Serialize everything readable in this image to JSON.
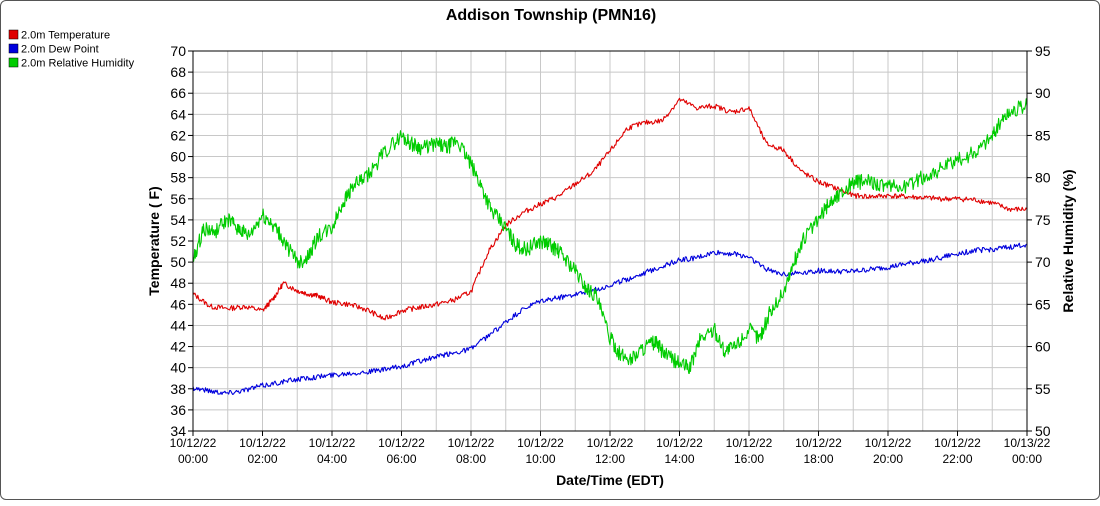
{
  "chart_data": {
    "type": "line",
    "title": "Addison Township (PMN16)",
    "xlabel": "Date/Time (EDT)",
    "ylabel_left": "Temperature ( F)",
    "ylabel_right": "Relative Humidity (%)",
    "ylim_left": [
      34,
      70
    ],
    "ylim_right": [
      50,
      95
    ],
    "xlim_hours": [
      0,
      24
    ],
    "grid": true,
    "legend_placement": "top-left",
    "x_ticks": [
      {
        "hour": 0,
        "date": "10/12/22",
        "time": "00:00"
      },
      {
        "hour": 2,
        "date": "10/12/22",
        "time": "02:00"
      },
      {
        "hour": 4,
        "date": "10/12/22",
        "time": "04:00"
      },
      {
        "hour": 6,
        "date": "10/12/22",
        "time": "06:00"
      },
      {
        "hour": 8,
        "date": "10/12/22",
        "time": "08:00"
      },
      {
        "hour": 10,
        "date": "10/12/22",
        "time": "10:00"
      },
      {
        "hour": 12,
        "date": "10/12/22",
        "time": "12:00"
      },
      {
        "hour": 14,
        "date": "10/12/22",
        "time": "14:00"
      },
      {
        "hour": 16,
        "date": "10/12/22",
        "time": "16:00"
      },
      {
        "hour": 18,
        "date": "10/12/22",
        "time": "18:00"
      },
      {
        "hour": 20,
        "date": "10/12/22",
        "time": "20:00"
      },
      {
        "hour": 22,
        "date": "10/12/22",
        "time": "22:00"
      },
      {
        "hour": 24,
        "date": "10/13/22",
        "time": "00:00"
      }
    ],
    "y_ticks_left": [
      34,
      36,
      38,
      40,
      42,
      44,
      46,
      48,
      50,
      52,
      54,
      56,
      58,
      60,
      62,
      64,
      66,
      68,
      70
    ],
    "y_ticks_right": [
      50,
      55,
      60,
      65,
      70,
      75,
      80,
      85,
      90,
      95
    ],
    "series": [
      {
        "name": "2.0m Temperature",
        "color": "#e00000",
        "axis": "left",
        "x": [
          0,
          0.5,
          1,
          1.5,
          2,
          2.3,
          2.6,
          3,
          3.3,
          3.6,
          4,
          4.5,
          5,
          5.5,
          6,
          6.5,
          7,
          7.5,
          8,
          8.5,
          9,
          9.5,
          10,
          10.5,
          11,
          11.5,
          12,
          12.5,
          13,
          13.5,
          14,
          14.5,
          15,
          15.5,
          16,
          16.5,
          17,
          17.5,
          18,
          18.5,
          19,
          19.5,
          20,
          20.5,
          21,
          21.5,
          22,
          22.5,
          23,
          23.5,
          24
        ],
        "values": [
          47,
          45.8,
          45.6,
          45.8,
          45.4,
          46.5,
          48,
          47.3,
          47,
          46.8,
          46.2,
          46,
          45.5,
          44.6,
          45.4,
          45.7,
          46,
          46.4,
          47.2,
          51,
          53.5,
          54.7,
          55.5,
          56.2,
          57.4,
          58.5,
          60.5,
          62.7,
          63.2,
          63.4,
          65.4,
          64.6,
          64.8,
          64.2,
          64.6,
          61.2,
          60.6,
          58.6,
          57.6,
          57,
          56.3,
          56.2,
          56.3,
          56.2,
          56.1,
          56,
          56,
          55.9,
          55.6,
          55,
          55
        ]
      },
      {
        "name": "2.0m Dew Point",
        "color": "#0000dd",
        "axis": "left",
        "x": [
          0,
          0.5,
          1,
          1.5,
          2,
          2.5,
          3,
          3.5,
          4,
          4.5,
          5,
          5.5,
          6,
          6.5,
          7,
          7.5,
          8,
          8.5,
          9,
          9.5,
          10,
          10.5,
          11,
          11.5,
          12,
          12.5,
          13,
          13.5,
          14,
          14.5,
          15,
          15.5,
          16,
          16.5,
          17,
          17.5,
          18,
          18.5,
          19,
          19.5,
          20,
          20.5,
          21,
          21.5,
          22,
          22.5,
          23,
          23.5,
          24
        ],
        "values": [
          38.1,
          37.8,
          37.6,
          37.9,
          38.3,
          38.6,
          38.9,
          39.1,
          39.3,
          39.5,
          39.6,
          39.8,
          40.1,
          40.6,
          41,
          41.4,
          41.8,
          43,
          44.3,
          45.5,
          46.3,
          46.6,
          47,
          47.3,
          47.8,
          48.4,
          49,
          49.6,
          50.2,
          50.4,
          50.9,
          50.8,
          50.5,
          49.3,
          48.9,
          49,
          49.2,
          49.1,
          49.1,
          49.3,
          49.5,
          49.8,
          50.1,
          50.4,
          50.8,
          51.1,
          51.2,
          51.4,
          51.7
        ]
      },
      {
        "name": "2.0m Relative Humidity",
        "color": "#00cc00",
        "axis": "right",
        "x": [
          0,
          0.3,
          0.6,
          1,
          1.3,
          1.6,
          2,
          2.3,
          2.6,
          3,
          3.3,
          3.6,
          4,
          4.3,
          4.6,
          5,
          5.5,
          6,
          6.3,
          6.6,
          7,
          7.3,
          7.6,
          8,
          8.3,
          8.6,
          9,
          9.3,
          9.6,
          10,
          10.3,
          10.6,
          11,
          11.3,
          11.6,
          12,
          12.3,
          12.6,
          13,
          13.3,
          13.6,
          14,
          14.3,
          14.6,
          15,
          15.3,
          15.6,
          16,
          16.3,
          16.6,
          17,
          17.3,
          17.6,
          18,
          18.3,
          18.6,
          19,
          19.3,
          19.6,
          20,
          20.5,
          21,
          21.5,
          22,
          22.5,
          23,
          23.3,
          23.6,
          24
        ],
        "values": [
          70,
          74,
          73.5,
          75,
          74,
          73,
          75.5,
          74.5,
          72.5,
          70,
          70.5,
          73,
          74,
          77,
          79,
          80,
          83,
          85,
          84,
          83.5,
          84,
          83.5,
          84.5,
          81.5,
          79,
          76,
          74,
          72,
          71.5,
          72.5,
          72,
          71,
          69,
          67,
          66,
          61,
          59,
          58.5,
          60,
          60.5,
          59,
          58,
          57.5,
          61,
          62,
          59.5,
          60,
          62,
          61,
          64,
          66.5,
          70,
          73,
          75,
          77,
          78,
          79.5,
          79.5,
          79.5,
          78.8,
          79,
          80,
          81,
          82,
          83,
          85,
          87,
          88,
          88.5
        ]
      }
    ]
  }
}
